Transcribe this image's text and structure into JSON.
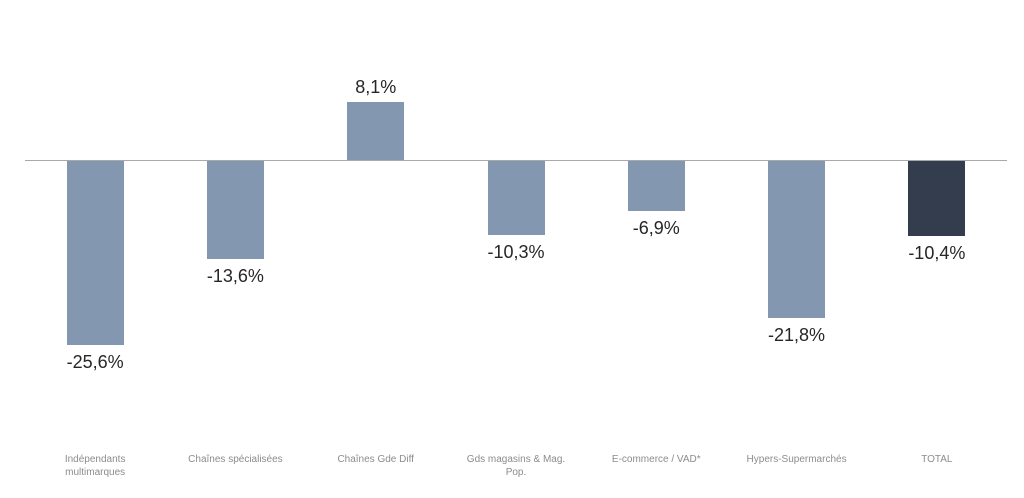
{
  "chart_data": {
    "type": "bar",
    "title": "",
    "xlabel": "",
    "ylabel": "",
    "ylim": [
      -30,
      12
    ],
    "grid": false,
    "legend": false,
    "categories": [
      "Indépendants\nmultimarques",
      "Chaînes spécialisées",
      "Chaînes Gde Diff",
      "Gds magasins & Mag.\nPop.",
      "E-commerce / VAD*",
      "Hypers-Supermarchés",
      "TOTAL"
    ],
    "values": [
      -25.6,
      -13.6,
      8.1,
      -10.3,
      -6.9,
      -21.8,
      -10.4
    ],
    "labels": [
      "-25,6%",
      "-13,6%",
      "8,1%",
      "-10,3%",
      "-6,9%",
      "-21,8%",
      "-10,4%"
    ],
    "bar_colors": [
      "#8497B0",
      "#8497B0",
      "#8497B0",
      "#8497B0",
      "#8497B0",
      "#8497B0",
      "#333D4E"
    ],
    "axis_line_color": "#A9A9A9",
    "value_label_color": "#262626",
    "category_label_color": "#8C8C8C",
    "background_color": "#FFFFFF"
  }
}
